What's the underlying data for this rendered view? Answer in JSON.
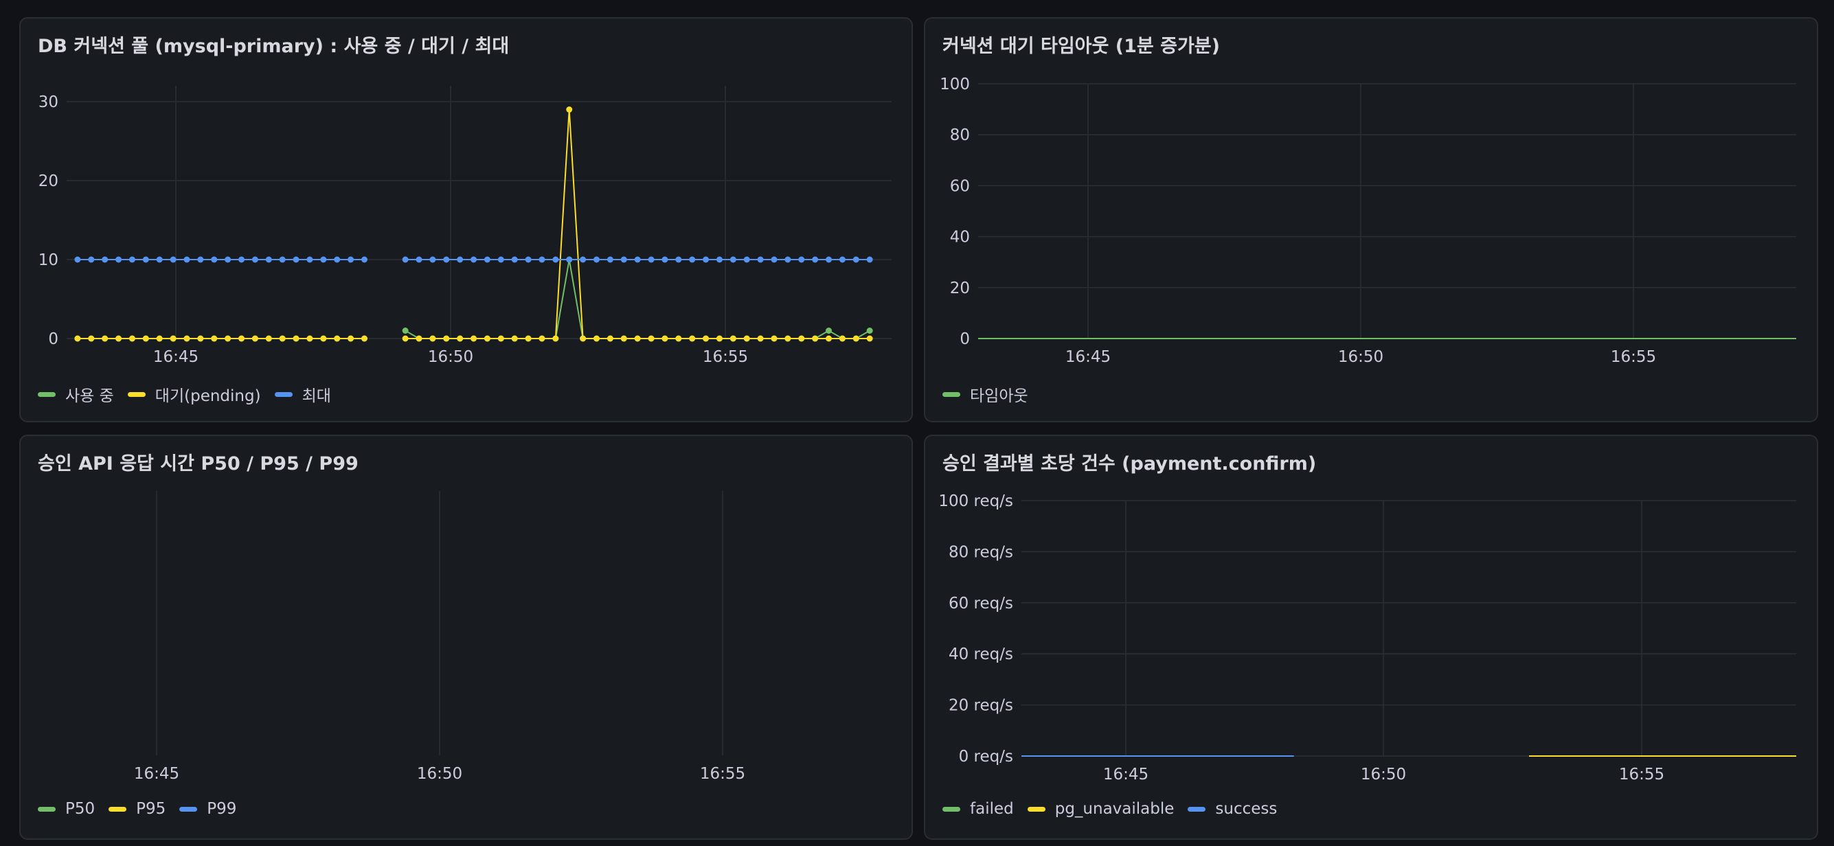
{
  "colors": {
    "green": "#73bf69",
    "yellow": "#fade2a",
    "blue": "#5794f2",
    "grid": "#2c2f35",
    "axis_text": "#ccccdc"
  },
  "panels": [
    {
      "title": "DB 커넥션 풀 (mysql-primary) : 사용 중 / 대기 / 최대",
      "legend": [
        {
          "label": "사용 중",
          "color": "#73bf69"
        },
        {
          "label": "대기(pending)",
          "color": "#fade2a"
        },
        {
          "label": "최대",
          "color": "#5794f2"
        }
      ]
    },
    {
      "title": "커넥션 대기 타임아웃 (1분 증가분)",
      "legend": [
        {
          "label": "타임아웃",
          "color": "#73bf69"
        }
      ]
    },
    {
      "title": "승인 API 응답 시간 P50 / P95 / P99",
      "legend": [
        {
          "label": "P50",
          "color": "#73bf69"
        },
        {
          "label": "P95",
          "color": "#fade2a"
        },
        {
          "label": "P99",
          "color": "#5794f2"
        }
      ]
    },
    {
      "title": "승인 결과별 초당 건수 (payment.confirm)",
      "legend": [
        {
          "label": "failed",
          "color": "#73bf69"
        },
        {
          "label": "pg_unavailable",
          "color": "#fade2a"
        },
        {
          "label": "success",
          "color": "#5794f2"
        }
      ]
    }
  ],
  "chart_data": [
    {
      "type": "line",
      "title": "DB 커넥션 풀 (mysql-primary) : 사용 중 / 대기 / 최대",
      "x_ticks": [
        "16:45",
        "16:50",
        "16:55"
      ],
      "y_ticks": [
        "0",
        "10",
        "20",
        "30"
      ],
      "ylim": [
        0,
        32
      ],
      "xlim": [
        -2.2,
        12.9
      ],
      "series": [
        {
          "name": "사용 중",
          "color": "#73bf69",
          "segments": [
            {
              "x": [
                -2.0,
                -1.75,
                -1.5,
                -1.25,
                -1.0,
                -0.75,
                -0.5,
                -0.25,
                0.0,
                0.25,
                0.5,
                0.75,
                1.0,
                1.25,
                1.5,
                1.75,
                2.0,
                2.25,
                2.5,
                2.75,
                3.0,
                3.25
              ],
              "y": [
                0,
                0,
                0,
                0,
                0,
                0,
                0,
                0,
                0,
                0,
                0,
                0,
                0,
                0,
                0,
                0,
                0,
                0,
                0,
                0,
                0,
                0
              ]
            },
            {
              "x": [
                4.0,
                4.25,
                4.5,
                4.75,
                5.0,
                5.25,
                5.5,
                5.75,
                6.0,
                6.25,
                6.5,
                6.75,
                7.0,
                7.25,
                7.5,
                7.75,
                8.0,
                8.25,
                8.5,
                8.75,
                9.0,
                9.25,
                9.5,
                9.75,
                10.0,
                10.25,
                10.5,
                10.75,
                11.0,
                11.25,
                11.5,
                11.75,
                12.0,
                12.25,
                12.5
              ],
              "y": [
                1,
                0,
                0,
                0,
                0,
                0,
                0,
                0,
                0,
                0,
                0,
                0,
                10,
                0,
                0,
                0,
                0,
                0,
                0,
                0,
                0,
                0,
                0,
                0,
                0,
                0,
                0,
                0,
                0,
                0,
                0,
                1,
                0,
                0,
                1
              ]
            }
          ]
        },
        {
          "name": "대기(pending)",
          "color": "#fade2a",
          "segments": [
            {
              "x": [
                -2.0,
                -1.75,
                -1.5,
                -1.25,
                -1.0,
                -0.75,
                -0.5,
                -0.25,
                0.0,
                0.25,
                0.5,
                0.75,
                1.0,
                1.25,
                1.5,
                1.75,
                2.0,
                2.25,
                2.5,
                2.75,
                3.0,
                3.25
              ],
              "y": [
                0,
                0,
                0,
                0,
                0,
                0,
                0,
                0,
                0,
                0,
                0,
                0,
                0,
                0,
                0,
                0,
                0,
                0,
                0,
                0,
                0,
                0
              ]
            },
            {
              "x": [
                4.0,
                4.25,
                4.5,
                4.75,
                5.0,
                5.25,
                5.5,
                5.75,
                6.0,
                6.25,
                6.5,
                6.75,
                7.0,
                7.25,
                7.5,
                7.75,
                8.0,
                8.25,
                8.5,
                8.75,
                9.0,
                9.25,
                9.5,
                9.75,
                10.0,
                10.25,
                10.5,
                10.75,
                11.0,
                11.25,
                11.5,
                11.75,
                12.0,
                12.25,
                12.5
              ],
              "y": [
                0,
                0,
                0,
                0,
                0,
                0,
                0,
                0,
                0,
                0,
                0,
                0,
                29,
                0,
                0,
                0,
                0,
                0,
                0,
                0,
                0,
                0,
                0,
                0,
                0,
                0,
                0,
                0,
                0,
                0,
                0,
                0,
                0,
                0,
                0
              ]
            }
          ]
        },
        {
          "name": "최대",
          "color": "#5794f2",
          "segments": [
            {
              "x": [
                -2.0,
                -1.75,
                -1.5,
                -1.25,
                -1.0,
                -0.75,
                -0.5,
                -0.25,
                0.0,
                0.25,
                0.5,
                0.75,
                1.0,
                1.25,
                1.5,
                1.75,
                2.0,
                2.25,
                2.5,
                2.75,
                3.0,
                3.25
              ],
              "y": [
                10,
                10,
                10,
                10,
                10,
                10,
                10,
                10,
                10,
                10,
                10,
                10,
                10,
                10,
                10,
                10,
                10,
                10,
                10,
                10,
                10,
                10
              ]
            },
            {
              "x": [
                4.0,
                4.25,
                4.5,
                4.75,
                5.0,
                5.25,
                5.5,
                5.75,
                6.0,
                6.25,
                6.5,
                6.75,
                7.0,
                7.25,
                7.5,
                7.75,
                8.0,
                8.25,
                8.5,
                8.75,
                9.0,
                9.25,
                9.5,
                9.75,
                10.0,
                10.25,
                10.5,
                10.75,
                11.0,
                11.25,
                11.5,
                11.75,
                12.0,
                12.25,
                12.5
              ],
              "y": [
                10,
                10,
                10,
                10,
                10,
                10,
                10,
                10,
                10,
                10,
                10,
                10,
                10,
                10,
                10,
                10,
                10,
                10,
                10,
                10,
                10,
                10,
                10,
                10,
                10,
                10,
                10,
                10,
                10,
                10,
                10,
                10,
                10,
                10,
                10
              ]
            }
          ]
        }
      ],
      "points": true,
      "legend_position": "bottom-left"
    },
    {
      "type": "line",
      "title": "커넥션 대기 타임아웃 (1분 증가분)",
      "x_ticks": [
        "16:45",
        "16:50",
        "16:55"
      ],
      "y_ticks": [
        "0",
        "20",
        "40",
        "60",
        "80",
        "100"
      ],
      "ylim": [
        0,
        100
      ],
      "xlim": [
        -2.0,
        12.7
      ],
      "series": [
        {
          "name": "타임아웃",
          "color": "#73bf69",
          "segments": [
            {
              "x": [
                -2.0,
                12.7
              ],
              "y": [
                0,
                0
              ]
            }
          ]
        }
      ],
      "points": false,
      "legend_position": "bottom-left"
    },
    {
      "type": "line",
      "title": "승인 API 응답 시간 P50 / P95 / P99",
      "x_ticks": [
        "16:45",
        "16:50",
        "16:55"
      ],
      "y_ticks": [],
      "xlim": [
        -2.2,
        12.9
      ],
      "series": [
        {
          "name": "P50",
          "color": "#73bf69",
          "segments": []
        },
        {
          "name": "P95",
          "color": "#fade2a",
          "segments": []
        },
        {
          "name": "P99",
          "color": "#5794f2",
          "segments": []
        }
      ],
      "points": false,
      "legend_position": "bottom-left"
    },
    {
      "type": "line",
      "title": "승인 결과별 초당 건수 (payment.confirm)",
      "x_ticks": [
        "16:45",
        "16:50",
        "16:55"
      ],
      "y_ticks": [
        "0 req/s",
        "20 req/s",
        "40 req/s",
        "60 req/s",
        "80 req/s",
        "100 req/s"
      ],
      "ylim": [
        0,
        100
      ],
      "xlim": [
        -2.0,
        12.5
      ],
      "series": [
        {
          "name": "failed",
          "color": "#73bf69",
          "segments": []
        },
        {
          "name": "pg_unavailable",
          "color": "#fade2a",
          "segments": [
            {
              "x": [
                7.5,
                12.5
              ],
              "y": [
                0,
                0
              ]
            }
          ]
        },
        {
          "name": "success",
          "color": "#5794f2",
          "segments": [
            {
              "x": [
                -2.0,
                3.1
              ],
              "y": [
                0,
                0
              ]
            }
          ]
        }
      ],
      "points": false,
      "legend_position": "bottom-left"
    }
  ]
}
